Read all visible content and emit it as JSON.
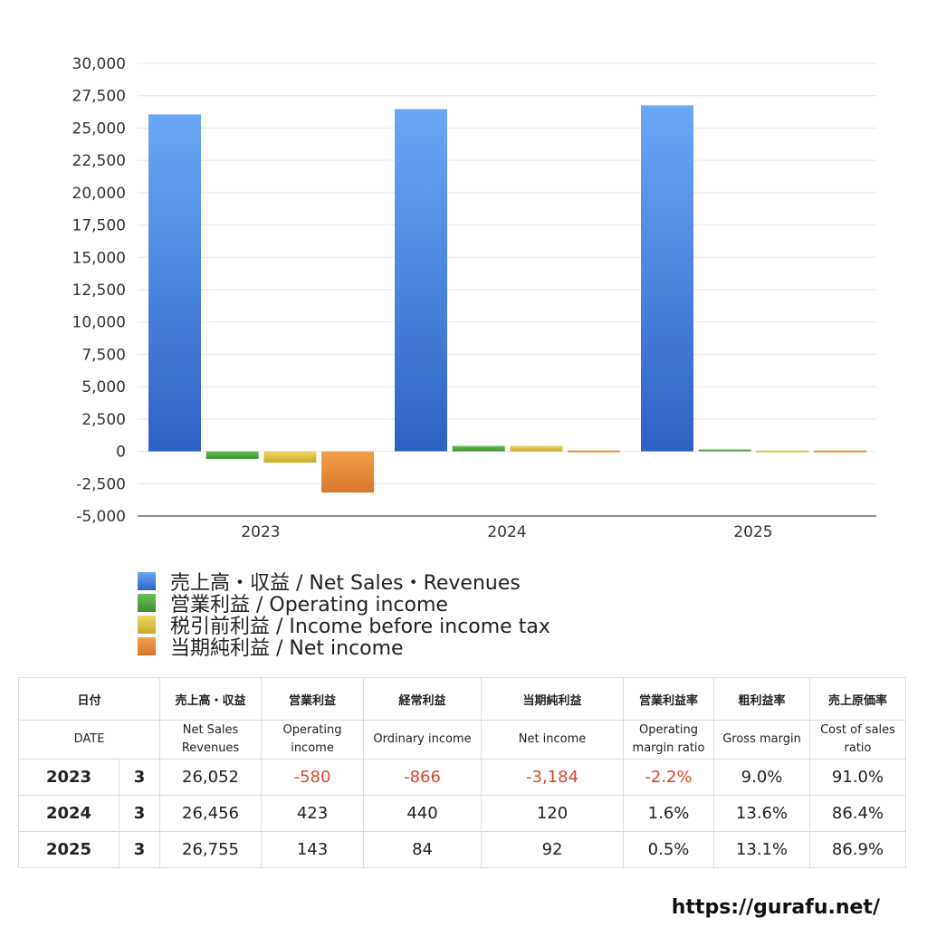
{
  "chart_data": {
    "type": "bar",
    "categories": [
      "2023",
      "2024",
      "2025"
    ],
    "y_ticks": [
      "30,000",
      "27,500",
      "25,000",
      "22,500",
      "20,000",
      "17,500",
      "15,000",
      "12,500",
      "10,000",
      "7,500",
      "5,000",
      "2,500",
      "0",
      "-2,500",
      "-5,000"
    ],
    "ylim": [
      -5000,
      30000
    ],
    "grid": true,
    "legend_position": "bottom-left",
    "series": [
      {
        "name": "売上高・収益 / Net Sales・Revenues",
        "values": [
          26052,
          26456,
          26755
        ],
        "color_top": "#6aa8f5",
        "color_bottom": "#2d62c4"
      },
      {
        "name": "営業利益 / Operating income",
        "values": [
          -580,
          423,
          143
        ],
        "color_top": "#6cc05a",
        "color_bottom": "#3f8c36"
      },
      {
        "name": "税引前利益 / Income before income tax",
        "values": [
          -866,
          440,
          84
        ],
        "color_top": "#efd964",
        "color_bottom": "#c8a92b"
      },
      {
        "name": "当期純利益 / Net income",
        "values": [
          -3184,
          120,
          92
        ],
        "color_top": "#f0a04a",
        "color_bottom": "#d8772c"
      }
    ]
  },
  "table": {
    "header_jp": [
      "日付",
      "売上高・収益",
      "営業利益",
      "経常利益",
      "当期純利益",
      "営業利益率",
      "粗利益率",
      "売上原価率"
    ],
    "header_en": [
      "DATE",
      "Net Sales Revenues",
      "Operating income",
      "Ordinary income",
      "Net income",
      "Operating margin ratio",
      "Gross margin",
      "Cost of sales ratio"
    ],
    "rows": [
      {
        "year": "2023",
        "month": "3",
        "cells": [
          "26,052",
          "-580",
          "-866",
          "-3,184",
          "-2.2%",
          "9.0%",
          "91.0%"
        ]
      },
      {
        "year": "2024",
        "month": "3",
        "cells": [
          "26,456",
          "423",
          "440",
          "120",
          "1.6%",
          "13.6%",
          "86.4%"
        ]
      },
      {
        "year": "2025",
        "month": "3",
        "cells": [
          "26,755",
          "143",
          "84",
          "92",
          "0.5%",
          "13.1%",
          "86.9%"
        ]
      }
    ]
  },
  "footer": {
    "url": "https://gurafu.net/"
  }
}
